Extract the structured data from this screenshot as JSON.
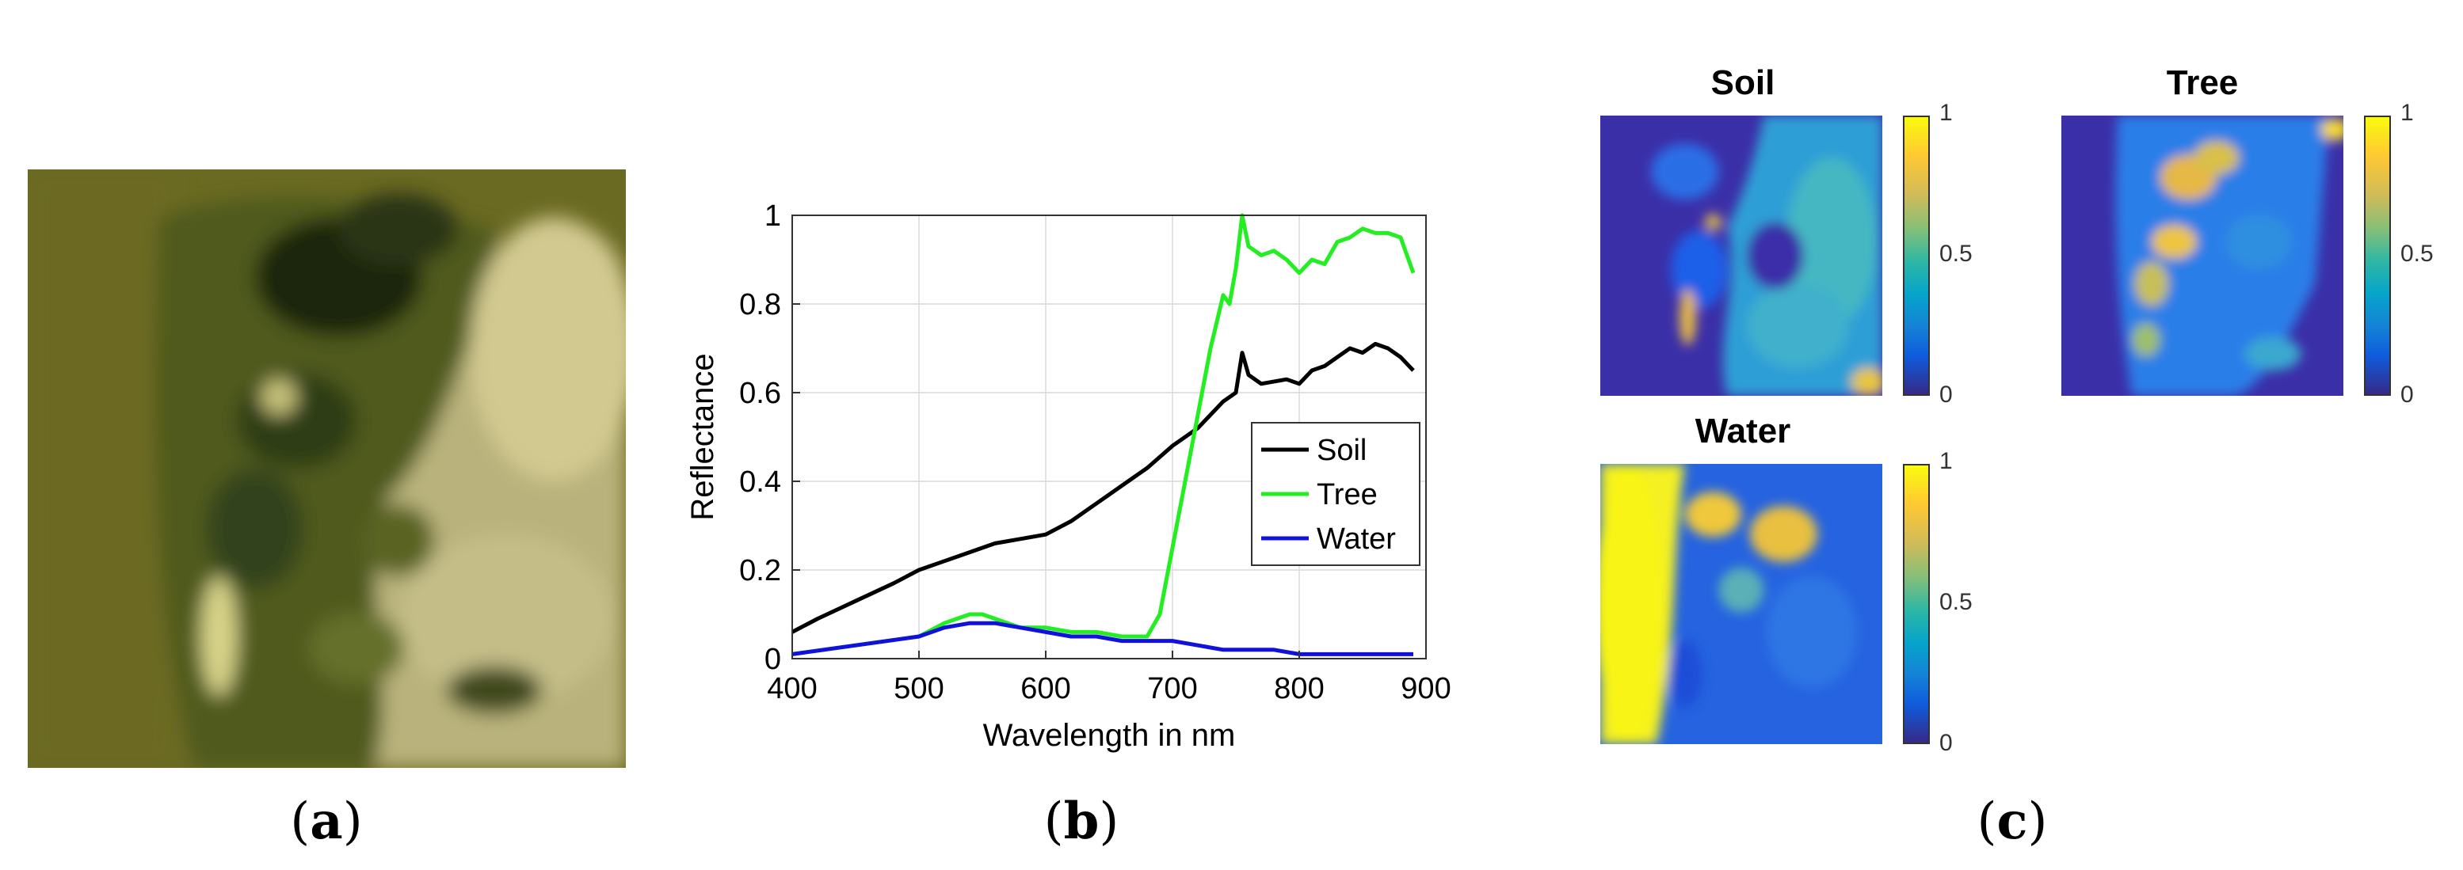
{
  "captions": {
    "a": "a",
    "b": "b",
    "c": "c"
  },
  "chart_data": {
    "type": "line",
    "xlabel": "Wavelength in nm",
    "ylabel": "Reflectance",
    "xlim": [
      400,
      900
    ],
    "ylim": [
      0,
      1
    ],
    "xticks": [
      "400",
      "500",
      "600",
      "700",
      "800",
      "900"
    ],
    "yticks": [
      "0",
      "0.2",
      "0.4",
      "0.6",
      "0.8",
      "1"
    ],
    "grid": true,
    "legend_position": "center-right",
    "series": [
      {
        "name": "Soil",
        "color": "#000000",
        "x": [
          400,
          420,
          450,
          480,
          500,
          520,
          540,
          560,
          580,
          600,
          620,
          640,
          660,
          680,
          700,
          710,
          720,
          730,
          740,
          750,
          755,
          760,
          770,
          790,
          800,
          810,
          820,
          830,
          840,
          850,
          860,
          870,
          880,
          890
        ],
        "y": [
          0.06,
          0.09,
          0.13,
          0.17,
          0.2,
          0.22,
          0.24,
          0.26,
          0.27,
          0.28,
          0.31,
          0.35,
          0.39,
          0.43,
          0.48,
          0.5,
          0.52,
          0.55,
          0.58,
          0.6,
          0.69,
          0.64,
          0.62,
          0.63,
          0.62,
          0.65,
          0.66,
          0.68,
          0.7,
          0.69,
          0.71,
          0.7,
          0.68,
          0.65
        ]
      },
      {
        "name": "Tree",
        "color": "#22ee22",
        "x": [
          400,
          450,
          500,
          520,
          540,
          550,
          560,
          580,
          600,
          620,
          640,
          660,
          680,
          690,
          700,
          710,
          720,
          730,
          740,
          745,
          750,
          755,
          760,
          770,
          780,
          790,
          800,
          810,
          820,
          830,
          840,
          850,
          860,
          870,
          880,
          890
        ],
        "y": [
          0.01,
          0.03,
          0.05,
          0.08,
          0.1,
          0.1,
          0.09,
          0.07,
          0.07,
          0.06,
          0.06,
          0.05,
          0.05,
          0.1,
          0.25,
          0.4,
          0.55,
          0.7,
          0.82,
          0.8,
          0.88,
          1.0,
          0.93,
          0.91,
          0.92,
          0.9,
          0.87,
          0.9,
          0.89,
          0.94,
          0.95,
          0.97,
          0.96,
          0.96,
          0.95,
          0.87
        ]
      },
      {
        "name": "Water",
        "color": "#1111dd",
        "x": [
          400,
          450,
          500,
          520,
          540,
          560,
          580,
          600,
          620,
          640,
          660,
          680,
          700,
          720,
          740,
          760,
          780,
          800,
          830,
          860,
          890
        ],
        "y": [
          0.01,
          0.03,
          0.05,
          0.07,
          0.08,
          0.08,
          0.07,
          0.06,
          0.05,
          0.05,
          0.04,
          0.04,
          0.04,
          0.03,
          0.02,
          0.02,
          0.02,
          0.01,
          0.01,
          0.01,
          0.01
        ]
      }
    ]
  },
  "abundance_maps": [
    {
      "title": "Soil",
      "colorbar_ticks": [
        "1",
        "0.5",
        "0"
      ]
    },
    {
      "title": "Tree",
      "colorbar_ticks": [
        "1",
        "0.5",
        "0"
      ]
    },
    {
      "title": "Water",
      "colorbar_ticks": [
        "1",
        "0.5",
        "0"
      ]
    }
  ]
}
